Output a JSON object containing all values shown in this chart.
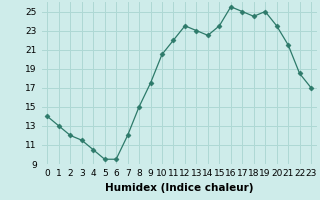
{
  "x": [
    0,
    1,
    2,
    3,
    4,
    5,
    6,
    7,
    8,
    9,
    10,
    11,
    12,
    13,
    14,
    15,
    16,
    17,
    18,
    19,
    20,
    21,
    22,
    23
  ],
  "y": [
    14.0,
    13.0,
    12.0,
    11.5,
    10.5,
    9.5,
    9.5,
    12.0,
    15.0,
    17.5,
    20.5,
    22.0,
    23.5,
    23.0,
    22.5,
    23.5,
    25.5,
    25.0,
    24.5,
    25.0,
    23.5,
    21.5,
    18.5,
    17.0
  ],
  "xlabel": "Humidex (Indice chaleur)",
  "xlim": [
    -0.5,
    23.5
  ],
  "ylim": [
    9,
    26
  ],
  "yticks": [
    9,
    11,
    13,
    15,
    17,
    19,
    21,
    23,
    25
  ],
  "xticks": [
    0,
    1,
    2,
    3,
    4,
    5,
    6,
    7,
    8,
    9,
    10,
    11,
    12,
    13,
    14,
    15,
    16,
    17,
    18,
    19,
    20,
    21,
    22,
    23
  ],
  "line_color": "#2d7a6a",
  "marker": "D",
  "marker_size": 2.5,
  "bg_color": "#ceecea",
  "grid_color": "#aed8d4",
  "tick_labelsize": 6.5,
  "xlabel_fontsize": 7.5
}
